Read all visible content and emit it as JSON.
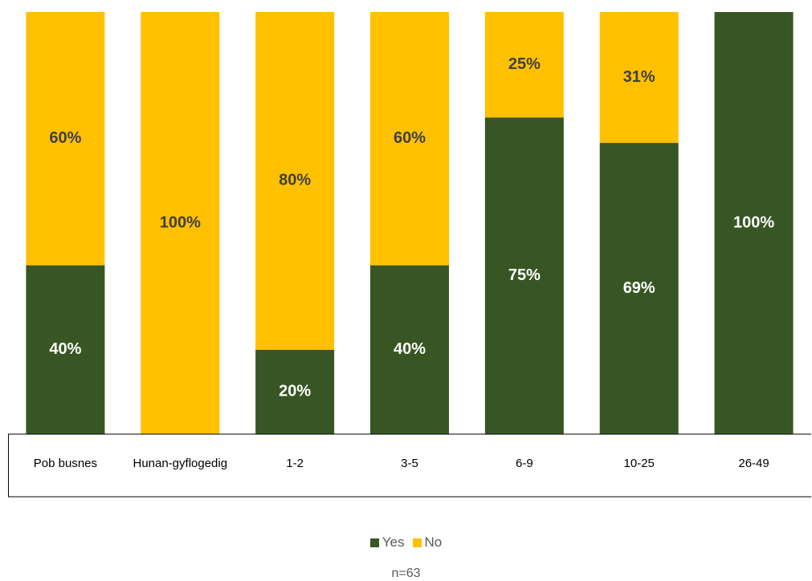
{
  "chart_data": {
    "type": "bar",
    "stacked": true,
    "normalized": true,
    "categories": [
      "Pob busnes",
      "Hunan-gyflogedig",
      "1-2",
      "3-5",
      "6-9",
      "10-25",
      "26-49"
    ],
    "series": [
      {
        "name": "Yes",
        "color": "#375623",
        "label_color": "#ffffff",
        "values": [
          40,
          0,
          20,
          40,
          75,
          69,
          100
        ],
        "labels": [
          "40%",
          "",
          "20%",
          "40%",
          "75%",
          "69%",
          "100%"
        ]
      },
      {
        "name": "No",
        "color": "#ffc000",
        "label_color": "#404040",
        "values": [
          60,
          100,
          80,
          60,
          25,
          31,
          0
        ],
        "labels": [
          "60%",
          "100%",
          "80%",
          "60%",
          "25%",
          "31%",
          ""
        ]
      }
    ],
    "ylim": [
      0,
      100
    ],
    "grid": false,
    "legend_position": "bottom",
    "category_labels_in_table": true
  },
  "note": "n=63"
}
